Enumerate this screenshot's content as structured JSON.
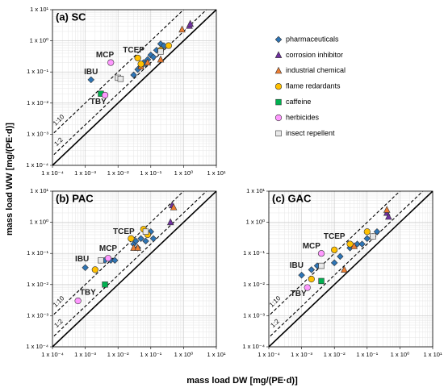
{
  "xlabel": "mass load DW [mg/(PE·d)]",
  "ylabel": "mass load WW [mg/(PE·d)]",
  "chart_data": [
    {
      "type": "scatter",
      "title": "(a) SC",
      "log_x": true,
      "log_y": true,
      "grid": true,
      "minor_grid": true,
      "legend": "right",
      "xlim": [
        0.0001,
        10
      ],
      "ylim": [
        0.0001,
        10
      ],
      "xticks": [
        {
          "value": 0.0001,
          "label": "1 x 10⁻⁴"
        },
        {
          "value": 0.001,
          "label": "1 x 10⁻³"
        },
        {
          "value": 0.01,
          "label": "1 x 10⁻²"
        },
        {
          "value": 0.1,
          "label": "1 x 10⁻¹"
        },
        {
          "value": 1,
          "label": "1 x 10⁰"
        },
        {
          "value": 10,
          "label": "1 x 10¹"
        }
      ],
      "yticks": [
        {
          "value": 0.0001,
          "label": "1 x 10⁻⁴"
        },
        {
          "value": 0.001,
          "label": "1 x 10⁻³"
        },
        {
          "value": 0.01,
          "label": "1 x 10⁻²"
        },
        {
          "value": 0.1,
          "label": "1 x 10⁻¹"
        },
        {
          "value": 1,
          "label": "1 x 10⁰"
        },
        {
          "value": 10,
          "label": "1 x 10¹"
        }
      ],
      "reference_lines": [
        {
          "slope": 10,
          "label": "1:10",
          "style": "dashed"
        },
        {
          "slope": 2,
          "label": "1:2",
          "style": "dashed"
        },
        {
          "slope": 1,
          "style": "solid"
        }
      ],
      "annotations": [
        {
          "text": "IBU",
          "x": 0.0015,
          "y": 0.1
        },
        {
          "text": "MCP",
          "x": 0.004,
          "y": 0.35
        },
        {
          "text": "TCEP",
          "x": 0.03,
          "y": 0.5
        },
        {
          "text": "TBY",
          "x": 0.0025,
          "y": 0.011
        }
      ],
      "series": [
        {
          "name": "pharmaceuticals",
          "color": "#2e75b6",
          "marker": "diamond",
          "x": [
            0.0015,
            0.03,
            0.04,
            0.05,
            0.06,
            0.08,
            0.1,
            0.15,
            0.2,
            0.25,
            0.07,
            0.12
          ],
          "values": [
            0.056,
            0.08,
            0.12,
            0.15,
            0.2,
            0.25,
            0.35,
            0.5,
            0.8,
            0.7,
            0.18,
            0.3
          ]
        },
        {
          "name": "corrosion inhibitor",
          "color": "#7030a0",
          "marker": "triangle",
          "x": [
            1.5,
            1.6
          ],
          "values": [
            3,
            3.5
          ]
        },
        {
          "name": "industrial chemical",
          "color": "#ed7d31",
          "marker": "triangle",
          "x": [
            0.9,
            0.08,
            0.2,
            0.05
          ],
          "values": [
            2.3,
            0.2,
            0.25,
            0.15
          ]
        },
        {
          "name": "flame redardants",
          "color": "#ffc000",
          "marker": "circle",
          "x": [
            0.04,
            0.05,
            0.35,
            0.2
          ],
          "values": [
            0.28,
            0.18,
            0.7,
            0.5
          ]
        },
        {
          "name": "caffeine",
          "color": "#00b050",
          "marker": "square",
          "x": [
            0.003
          ],
          "values": [
            0.02
          ]
        },
        {
          "name": "herbicides",
          "color": "#ff99ff",
          "marker": "circle",
          "x": [
            0.006,
            0.004
          ],
          "values": [
            0.2,
            0.018
          ]
        },
        {
          "name": "insect repellent",
          "color": "#e8e8e8",
          "marker": "square",
          "x": [
            0.01,
            0.2,
            0.012
          ],
          "values": [
            0.065,
            0.45,
            0.06
          ]
        }
      ]
    },
    {
      "type": "scatter",
      "title": "(b) PAC",
      "log_x": true,
      "log_y": true,
      "grid": true,
      "minor_grid": true,
      "xlim": [
        0.0001,
        10
      ],
      "ylim": [
        0.0001,
        10
      ],
      "xticks": [
        {
          "value": 0.0001,
          "label": "1 x 10⁻⁴"
        },
        {
          "value": 0.001,
          "label": "1 x 10⁻³"
        },
        {
          "value": 0.01,
          "label": "1 x 10⁻²"
        },
        {
          "value": 0.1,
          "label": "1 x 10⁻¹"
        },
        {
          "value": 1,
          "label": "1 x 10⁰"
        },
        {
          "value": 10,
          "label": "1 x 10¹"
        }
      ],
      "yticks": [
        {
          "value": 0.0001,
          "label": "1 x 10⁻⁴"
        },
        {
          "value": 0.001,
          "label": "1 x 10⁻³"
        },
        {
          "value": 0.01,
          "label": "1 x 10⁻²"
        },
        {
          "value": 0.1,
          "label": "1 x 10⁻¹"
        },
        {
          "value": 1,
          "label": "1 x 10⁰"
        },
        {
          "value": 10,
          "label": "1 x 10¹"
        }
      ],
      "reference_lines": [
        {
          "slope": 10,
          "label": "1:10",
          "style": "dashed"
        },
        {
          "slope": 2,
          "label": "1:2",
          "style": "dashed"
        },
        {
          "slope": 1,
          "style": "solid"
        }
      ],
      "annotations": [
        {
          "text": "IBU",
          "x": 0.0008,
          "y": 0.065
        },
        {
          "text": "MCP",
          "x": 0.005,
          "y": 0.14
        },
        {
          "text": "TCEP",
          "x": 0.015,
          "y": 0.5
        },
        {
          "text": "TBY",
          "x": 0.0012,
          "y": 0.0055
        }
      ],
      "series": [
        {
          "name": "pharmaceuticals",
          "color": "#2e75b6",
          "marker": "diamond",
          "x": [
            0.001,
            0.004,
            0.006,
            0.008,
            0.03,
            0.04,
            0.05,
            0.07,
            0.1,
            0.12,
            0.08,
            0.035
          ],
          "values": [
            0.035,
            0.06,
            0.06,
            0.06,
            0.2,
            0.15,
            0.3,
            0.25,
            0.5,
            0.3,
            0.4,
            0.25
          ]
        },
        {
          "name": "corrosion inhibitor",
          "color": "#7030a0",
          "marker": "triangle",
          "x": [
            0.4,
            0.45
          ],
          "values": [
            1,
            3.5
          ]
        },
        {
          "name": "industrial chemical",
          "color": "#ed7d31",
          "marker": "triangle",
          "x": [
            0.5,
            0.03,
            0.04
          ],
          "values": [
            3,
            0.15,
            0.15
          ]
        },
        {
          "name": "flame redardants",
          "color": "#ffc000",
          "marker": "circle",
          "x": [
            0.002,
            0.025,
            0.06,
            0.08
          ],
          "values": [
            0.03,
            0.3,
            0.6,
            0.4
          ]
        },
        {
          "name": "caffeine",
          "color": "#00b050",
          "marker": "square",
          "x": [
            0.004
          ],
          "values": [
            0.01
          ]
        },
        {
          "name": "herbicides",
          "color": "#ff99ff",
          "marker": "circle",
          "x": [
            0.005,
            0.0006
          ],
          "values": [
            0.07,
            0.003
          ]
        },
        {
          "name": "insect repellent",
          "color": "#e8e8e8",
          "marker": "square",
          "x": [
            0.003,
            0.07
          ],
          "values": [
            0.06,
            0.5
          ]
        }
      ]
    },
    {
      "type": "scatter",
      "title": "(c) GAC",
      "log_x": true,
      "log_y": true,
      "grid": true,
      "minor_grid": true,
      "xlim": [
        0.0001,
        10
      ],
      "ylim": [
        0.0001,
        10
      ],
      "xticks": [
        {
          "value": 0.0001,
          "label": "1 x 10⁻⁴"
        },
        {
          "value": 0.001,
          "label": "1 x 10⁻³"
        },
        {
          "value": 0.01,
          "label": "1 x 10⁻²"
        },
        {
          "value": 0.1,
          "label": "1 x 10⁻¹"
        },
        {
          "value": 1,
          "label": "1 x 10⁰"
        },
        {
          "value": 10,
          "label": "1 x 10¹"
        }
      ],
      "yticks": [
        {
          "value": 0.0001,
          "label": "1 x 10⁻⁴"
        },
        {
          "value": 0.001,
          "label": "1 x 10⁻³"
        },
        {
          "value": 0.01,
          "label": "1 x 10⁻²"
        },
        {
          "value": 0.1,
          "label": "1 x 10⁻¹"
        },
        {
          "value": 1,
          "label": "1 x 10⁰"
        },
        {
          "value": 10,
          "label": "1 x 10¹"
        }
      ],
      "reference_lines": [
        {
          "slope": 10,
          "label": "1:10",
          "style": "dashed"
        },
        {
          "slope": 2,
          "label": "1:2",
          "style": "dashed"
        },
        {
          "slope": 1,
          "style": "solid"
        }
      ],
      "annotations": [
        {
          "text": "IBU",
          "x": 0.0007,
          "y": 0.04
        },
        {
          "text": "MCP",
          "x": 0.002,
          "y": 0.17
        },
        {
          "text": "TCEP",
          "x": 0.01,
          "y": 0.35
        },
        {
          "text": "TBY",
          "x": 0.0008,
          "y": 0.005
        }
      ],
      "series": [
        {
          "name": "pharmaceuticals",
          "color": "#2e75b6",
          "marker": "diamond",
          "x": [
            0.001,
            0.002,
            0.003,
            0.01,
            0.015,
            0.03,
            0.05,
            0.1,
            0.2,
            0.15,
            0.07
          ],
          "values": [
            0.02,
            0.03,
            0.04,
            0.05,
            0.08,
            0.15,
            0.2,
            0.3,
            0.5,
            0.35,
            0.2
          ]
        },
        {
          "name": "corrosion inhibitor",
          "color": "#7030a0",
          "marker": "triangle",
          "x": [
            0.4,
            0.45
          ],
          "values": [
            2,
            1.5
          ]
        },
        {
          "name": "industrial chemical",
          "color": "#ed7d31",
          "marker": "triangle",
          "x": [
            0.4,
            0.02,
            0.04
          ],
          "values": [
            2.5,
            0.03,
            0.17
          ]
        },
        {
          "name": "flame redardants",
          "color": "#ffc000",
          "marker": "circle",
          "x": [
            0.002,
            0.01,
            0.1,
            0.03
          ],
          "values": [
            0.015,
            0.13,
            0.5,
            0.2
          ]
        },
        {
          "name": "caffeine",
          "color": "#00b050",
          "marker": "square",
          "x": [
            0.004
          ],
          "values": [
            0.013
          ]
        },
        {
          "name": "herbicides",
          "color": "#ff99ff",
          "marker": "circle",
          "x": [
            0.004,
            0.0015
          ],
          "values": [
            0.1,
            0.008
          ]
        },
        {
          "name": "insect repellent",
          "color": "#e8e8e8",
          "marker": "square",
          "x": [
            0.004,
            0.15
          ],
          "values": [
            0.04,
            0.35
          ]
        }
      ]
    }
  ]
}
